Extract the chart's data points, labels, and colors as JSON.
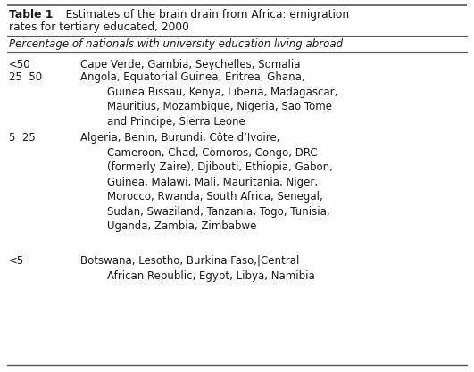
{
  "title_bold": "Table 1",
  "title_rest": "    Estimates of the brain drain from Africa: emigration",
  "title_line2": "rates for tertiary educated, 2000",
  "subtitle": "Percentage of nationals with university education living abroad",
  "row1_range": "<50",
  "row1_text": "Cape Verde, Gambia, Seychelles, Somalia",
  "row2_range": "25  50",
  "row2_text": "Angola, Equatorial Guinea, Eritrea, Ghana,\n        Guinea Bissau, Kenya, Liberia, Madagascar,\n        Mauritius, Mozambique, Nigeria, Sao Tome\n        and Principe, Sierra Leone",
  "row3_range": "5  25",
  "row3_text": "Algeria, Benin, Burundi, Côte d’Ivoire,\n        Cameroon, Chad, Comoros, Congo, DRC\n        (formerly Zaire), Djibouti, Ethiopia, Gabon,\n        Guinea, Malawi, Mali, Mauritania, Niger,\n        Morocco, Rwanda, South Africa, Senegal,\n        Sudan, Swaziland, Tanzania, Togo, Tunisia,\n        Uganda, Zambia, Zimbabwe",
  "row4_range": "<5",
  "row4_text": "Botswana, Lesotho, Burkina Faso,|Central\n        African Republic, Egypt, Libya, Namibia",
  "bg_color": "#ffffff",
  "text_color": "#1a1a1a",
  "font_size": 8.5,
  "title_font_size": 8.8,
  "line_color": "#555555",
  "fig_width": 5.31,
  "fig_height": 4.17,
  "dpi": 100
}
